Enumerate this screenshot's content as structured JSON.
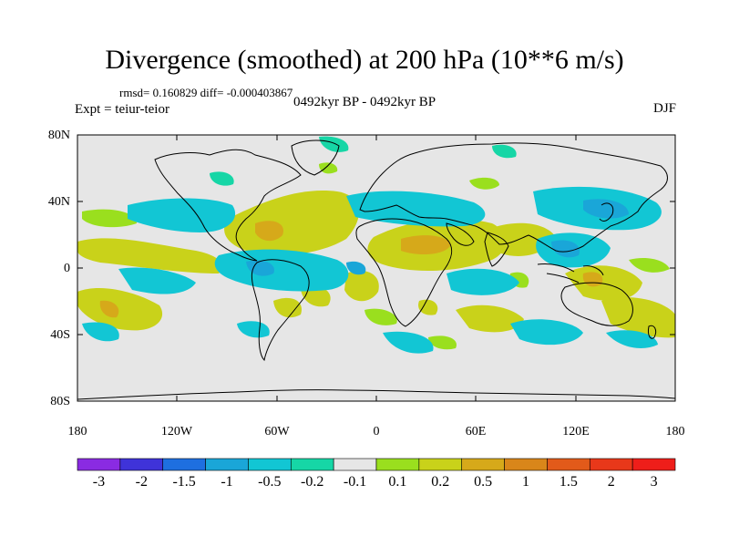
{
  "title": "Divergence (smoothed) at 200 hPa (10**6 m/s)",
  "stats_line": "rmsd= 0.160829 diff= -0.000403867",
  "period": "0492kyr BP - 0492kyr BP",
  "experiment": "Expt = teiur-teior",
  "season": "DJF",
  "y_axis_labels": [
    "80N",
    "40N",
    "0",
    "40S",
    "80S"
  ],
  "x_axis_labels": [
    "180",
    "120W",
    "60W",
    "0",
    "60E",
    "120E",
    "180"
  ],
  "colorbar": {
    "tick_labels": [
      "-3",
      "-2",
      "-1.5",
      "-1",
      "-0.5",
      "-0.2",
      "-0.1",
      "0.1",
      "0.2",
      "0.5",
      "1",
      "1.5",
      "2",
      "3"
    ],
    "colors": [
      "#8a2be2",
      "#3f33d9",
      "#1e6fe0",
      "#1aa6d8",
      "#12c6d4",
      "#16d6a6",
      "#e6e6e6",
      "#9adf1e",
      "#c9d21a",
      "#d6a91a",
      "#d9861a",
      "#e25a1a",
      "#e8381a",
      "#ee1e1a"
    ]
  },
  "colors": {
    "ocean_background": "#e6e6e6",
    "coast": "#000000"
  }
}
